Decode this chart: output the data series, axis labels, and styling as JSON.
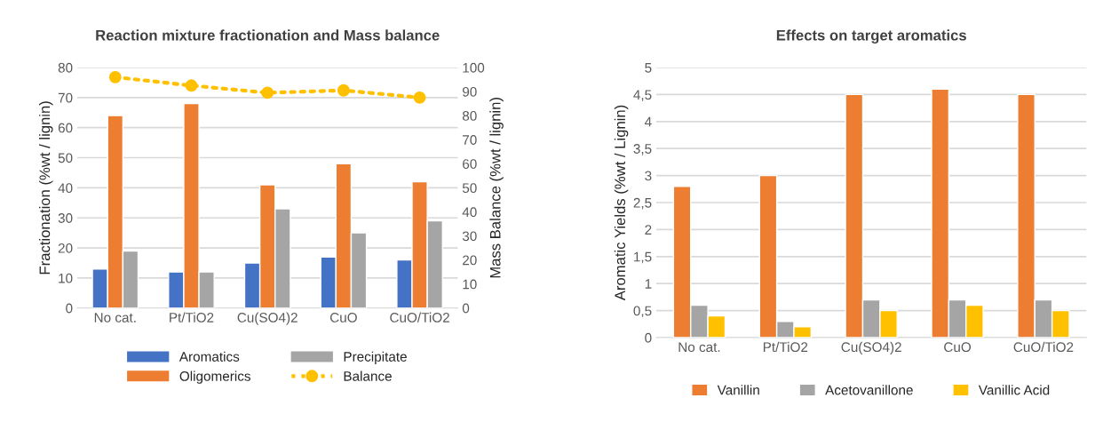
{
  "chart_data": [
    {
      "type": "bar",
      "title": "Reaction mixture fractionation and Mass balance",
      "ylabel": "Fractionation (%wt / lignin)",
      "y2label": "Mass Balance (%wt / lignin)",
      "categories": [
        "No cat.",
        "Pt/TiO2",
        "Cu(SO4)2",
        "CuO",
        "CuO/TiO2"
      ],
      "series": [
        {
          "name": "Aromatics",
          "color": "#4472c4",
          "values": [
            13,
            12,
            15,
            17,
            16
          ]
        },
        {
          "name": "Oligomerics",
          "color": "#ed7d31",
          "values": [
            64,
            68,
            41,
            48,
            42
          ]
        },
        {
          "name": "Precipitate",
          "color": "#a5a5a5",
          "values": [
            19,
            12,
            33,
            25,
            29
          ]
        },
        {
          "name": "Balance",
          "color": "#ffc000",
          "type": "line",
          "axis": "y2",
          "marker": "circle",
          "line_style": "dotted",
          "values": [
            96,
            92.5,
            89.5,
            90.5,
            87.5
          ]
        }
      ],
      "ylim": [
        0,
        80
      ],
      "yticks": [
        0,
        10,
        20,
        30,
        40,
        50,
        60,
        70,
        80
      ],
      "y2lim": [
        0,
        100
      ],
      "y2ticks": [
        0,
        10,
        20,
        30,
        40,
        50,
        60,
        70,
        80,
        90,
        100
      ],
      "grid": "y",
      "legend": "bottom"
    },
    {
      "type": "bar",
      "title": "Effects on target aromatics",
      "ylabel": "Aromatic Yields (%wt / Lignin)",
      "categories": [
        "No cat.",
        "Pt/TiO2",
        "Cu(SO4)2",
        "CuO",
        "CuO/TiO2"
      ],
      "series": [
        {
          "name": "Vanillin",
          "color": "#ed7d31",
          "values": [
            2.8,
            3.0,
            4.5,
            4.6,
            4.5
          ]
        },
        {
          "name": "Acetovanillone",
          "color": "#a5a5a5",
          "values": [
            0.6,
            0.3,
            0.7,
            0.7,
            0.7
          ]
        },
        {
          "name": "Vanillic Acid",
          "color": "#ffc000",
          "values": [
            0.4,
            0.2,
            0.5,
            0.6,
            0.5
          ]
        }
      ],
      "ylim": [
        0,
        5
      ],
      "yticks": [
        0,
        {
          "value": 0.5,
          "label": "0,5"
        },
        1,
        {
          "value": 1.5,
          "label": "1,5"
        },
        2,
        {
          "value": 2.5,
          "label": "2,5"
        },
        3,
        {
          "value": 3.5,
          "label": "3,5"
        },
        4,
        {
          "value": 4.5,
          "label": "4,5"
        },
        5
      ],
      "grid": "y",
      "legend": "bottom"
    }
  ]
}
